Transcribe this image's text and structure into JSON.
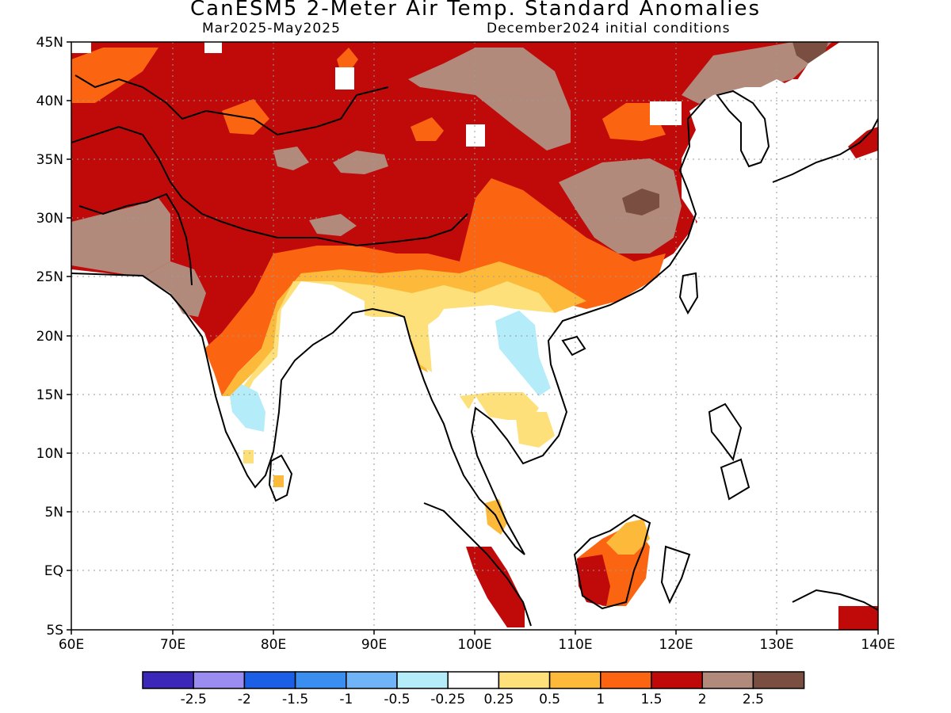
{
  "header": {
    "title": "CanESM5 2-Meter Air Temp. Standard Anomalies",
    "period": "Mar2025-May2025",
    "initial_conditions": "December2024 initial conditions"
  },
  "axes": {
    "lat_labels": [
      "45N",
      "40N",
      "35N",
      "30N",
      "25N",
      "20N",
      "15N",
      "10N",
      "5N",
      "EQ",
      "5S"
    ],
    "lon_labels": [
      "60E",
      "70E",
      "80E",
      "90E",
      "100E",
      "110E",
      "120E",
      "130E",
      "140E"
    ]
  },
  "colorbar": {
    "colors": [
      "#3b28b8",
      "#9b8cf2",
      "#1a5fe6",
      "#3a8ef0",
      "#70b4f7",
      "#b4ecf9",
      "#ffffff",
      "#fde07a",
      "#fdb93a",
      "#fb6410",
      "#c00a0a",
      "#b28a7c",
      "#7a4e40"
    ],
    "labels": [
      "-2.5",
      "-2",
      "-1.5",
      "-1",
      "-0.5",
      "-0.25",
      "0.25",
      "0.5",
      "1",
      "1.5",
      "2",
      "2.5"
    ]
  },
  "palette": {
    "very_warm": "#c00a0a",
    "warm": "#fb6410",
    "moderate": "#fdb93a",
    "slight": "#fde07a",
    "cool": "#b4ecf9",
    "brown_light": "#b28a7c",
    "brown_dark": "#7a4e40"
  }
}
